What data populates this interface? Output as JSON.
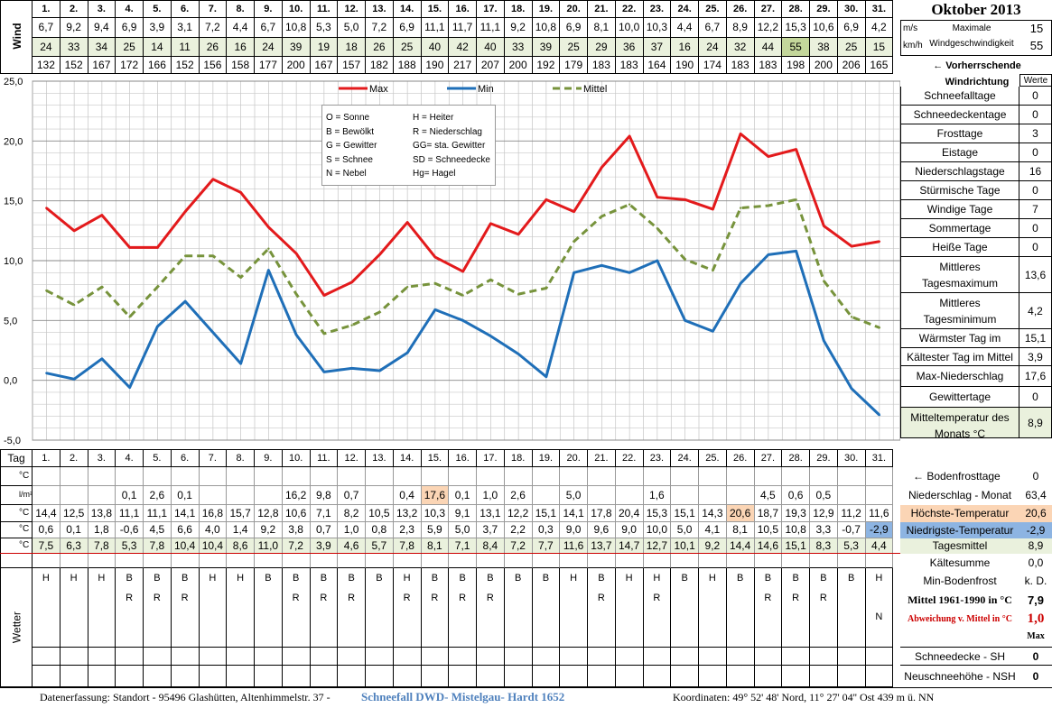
{
  "title": "Oktober 2013",
  "wind": {
    "label": "Wind",
    "unit_ms": "m/s",
    "unit_kmh": "km/h",
    "max_label_1": "Maximale",
    "max_label_2": "Windgeschwindigkeit",
    "max_ms": "15",
    "max_kmh": "55",
    "dir_label": "← Vorherrschende Windrichtung",
    "ms": [
      "6,7",
      "9,2",
      "9,4",
      "6,9",
      "3,9",
      "3,1",
      "7,2",
      "4,4",
      "6,7",
      "10,8",
      "5,3",
      "5,0",
      "7,2",
      "6,9",
      "11,1",
      "11,7",
      "11,1",
      "9,2",
      "10,8",
      "6,9",
      "8,1",
      "10,0",
      "10,3",
      "4,4",
      "6,7",
      "8,9",
      "12,2",
      "15,3",
      "10,6",
      "6,9",
      "4,2"
    ],
    "kmh": [
      "24",
      "33",
      "34",
      "25",
      "14",
      "11",
      "26",
      "16",
      "24",
      "39",
      "19",
      "18",
      "26",
      "25",
      "40",
      "42",
      "40",
      "33",
      "39",
      "25",
      "29",
      "36",
      "37",
      "16",
      "24",
      "32",
      "44",
      "55",
      "38",
      "25",
      "15"
    ],
    "dir": [
      "132",
      "152",
      "167",
      "172",
      "166",
      "152",
      "156",
      "158",
      "177",
      "200",
      "167",
      "157",
      "182",
      "188",
      "190",
      "217",
      "207",
      "200",
      "192",
      "179",
      "183",
      "183",
      "164",
      "190",
      "174",
      "183",
      "183",
      "198",
      "200",
      "206",
      "165"
    ]
  },
  "days": [
    "1.",
    "2.",
    "3.",
    "4.",
    "5.",
    "6.",
    "7.",
    "8.",
    "9.",
    "10.",
    "11.",
    "12.",
    "13.",
    "14.",
    "15.",
    "16.",
    "17.",
    "18.",
    "19.",
    "20.",
    "21.",
    "22.",
    "23.",
    "24.",
    "25.",
    "26.",
    "27.",
    "28.",
    "29.",
    "30.",
    "31."
  ],
  "right_panel": {
    "werte_label": "Werte",
    "rows": [
      {
        "label": "Schneefalltage",
        "value": "0"
      },
      {
        "label": "Schneedeckentage",
        "value": "0"
      },
      {
        "label": "Frosttage",
        "value": "3"
      },
      {
        "label": "Eistage",
        "value": "0"
      },
      {
        "label": "Niederschlagstage",
        "value": "16"
      },
      {
        "label": "Stürmische Tage",
        "value": "0"
      },
      {
        "label": "Windige Tage",
        "value": "7"
      },
      {
        "label": "Sommertage",
        "value": "0"
      },
      {
        "label": "Heiße Tage",
        "value": "0"
      },
      {
        "label": "Mittleres Tagesmaximum",
        "value": "13,6"
      },
      {
        "label": "Mittleres Tagesminimum",
        "value": "4,2"
      },
      {
        "label": "Wärmster Tag im Mittel",
        "value": "15,1"
      },
      {
        "label": "Kältester Tag im Mittel",
        "value": "3,9"
      },
      {
        "label": "Max-Niederschlag",
        "value": "17,6"
      },
      {
        "label": "Gewittertage",
        "value": "0"
      },
      {
        "label": "Mitteltemperatur des Monats °C",
        "value": "8,9"
      }
    ]
  },
  "chart_data": {
    "type": "line",
    "x": [
      1,
      2,
      3,
      4,
      5,
      6,
      7,
      8,
      9,
      10,
      11,
      12,
      13,
      14,
      15,
      16,
      17,
      18,
      19,
      20,
      21,
      22,
      23,
      24,
      25,
      26,
      27,
      28,
      29,
      30,
      31
    ],
    "ylim": [
      -5,
      25
    ],
    "yticks": [
      "25,0",
      "20,0",
      "15,0",
      "10,0",
      "5,0",
      "0,0",
      "-5,0"
    ],
    "grid": true,
    "legend": "top",
    "series": [
      {
        "name": "Max",
        "color": "#e31a1c",
        "dash": false,
        "values": [
          14.4,
          12.5,
          13.8,
          11.1,
          11.1,
          14.1,
          16.8,
          15.7,
          12.8,
          10.6,
          7.1,
          8.2,
          10.5,
          13.2,
          10.3,
          9.1,
          13.1,
          12.2,
          15.1,
          14.1,
          17.8,
          20.4,
          15.3,
          15.1,
          14.3,
          20.6,
          18.7,
          19.3,
          12.9,
          11.2,
          11.6
        ]
      },
      {
        "name": "Min",
        "color": "#1f6fb8",
        "dash": false,
        "values": [
          0.6,
          0.1,
          1.8,
          -0.6,
          4.5,
          6.6,
          4.0,
          1.4,
          9.2,
          3.8,
          0.7,
          1.0,
          0.8,
          2.3,
          5.9,
          5.0,
          3.7,
          2.2,
          0.3,
          9.0,
          9.6,
          9.0,
          10.0,
          5.0,
          4.1,
          8.1,
          10.5,
          10.8,
          3.3,
          -0.7,
          -2.9
        ]
      },
      {
        "name": "Mittel",
        "color": "#77933c",
        "dash": true,
        "values": [
          7.5,
          6.3,
          7.8,
          5.3,
          7.8,
          10.4,
          10.4,
          8.6,
          11.0,
          7.2,
          3.9,
          4.6,
          5.7,
          7.8,
          8.1,
          7.1,
          8.4,
          7.2,
          7.7,
          11.6,
          13.7,
          14.7,
          12.7,
          10.1,
          9.2,
          14.4,
          14.6,
          15.1,
          8.3,
          5.3,
          4.4
        ]
      }
    ],
    "weather_legend": [
      [
        "O = Sonne",
        "H = Heiter"
      ],
      [
        "B = Bewölkt",
        "R = Niederschlag"
      ],
      [
        "G = Gewitter",
        "GG= sta. Gewitter"
      ],
      [
        "S = Schnee",
        "SD = Schneedecke"
      ],
      [
        "N = Nebel",
        "Hg= Hagel"
      ]
    ]
  },
  "table": {
    "tag_label": "Tag",
    "unit_c": "°C",
    "unit_precip": "l/m²",
    "bodenfrost_label": "← Bodenfrosttage",
    "bodenfrost_value": "0",
    "precip": [
      "",
      "",
      "",
      "0,1",
      "2,6",
      "0,1",
      "",
      "",
      "",
      "16,2",
      "9,8",
      "0,7",
      "",
      "0,4",
      "17,6",
      "0,1",
      "1,0",
      "2,6",
      "",
      "5,0",
      "",
      "",
      "1,6",
      "",
      "",
      "",
      "4,5",
      "0,6",
      "0,5",
      "",
      ""
    ],
    "precip_label": "Niederschlag - Monat",
    "precip_value": "63,4",
    "max_label": "Höchste-Temperatur",
    "max_value": "20,6",
    "min_label": "Niedrigste-Temperatur",
    "min_value": "-2,9",
    "mean_label": "Tagesmittel",
    "mean_value": "8,9",
    "kaelte_label": "Kältesumme",
    "kaelte_value": "0,0",
    "minboden_label": "Min-Bodenfrost",
    "minboden_value": "k. D.",
    "mittel_label": "Mittel 1961-1990 in °C",
    "mittel_value": "7,9",
    "abw_label": "Abweichung v. Mittel in °C",
    "abw_value": "1,0",
    "max_word": "Max",
    "wetter_label": "Wetter",
    "weather_row1": [
      "H",
      "H",
      "H",
      "B",
      "B",
      "B",
      "H",
      "H",
      "B",
      "B",
      "B",
      "B",
      "B",
      "H",
      "B",
      "B",
      "B",
      "B",
      "B",
      "H",
      "B",
      "H",
      "H",
      "B",
      "H",
      "B",
      "B",
      "B",
      "B",
      "B",
      "H"
    ],
    "weather_row2": [
      "",
      "",
      "",
      "R",
      "R",
      "R",
      "",
      "",
      "",
      "R",
      "R",
      "R",
      "",
      "R",
      "R",
      "R",
      "R",
      "",
      "",
      "",
      "R",
      "",
      "R",
      "",
      "",
      "",
      "R",
      "R",
      "R",
      "",
      ""
    ],
    "weather_row3": [
      "",
      "",
      "",
      "",
      "",
      "",
      "",
      "",
      "",
      "",
      "",
      "",
      "",
      "",
      "",
      "",
      "",
      "",
      "",
      "",
      "",
      "",
      "",
      "",
      "",
      "",
      "",
      "",
      "",
      "",
      "N"
    ],
    "schnee_label": "Schneedecke -  SH",
    "schnee_value": "0",
    "neu_label": "Neuschneehöhe - NSH",
    "neu_value": "0"
  },
  "footer": {
    "left": "Datenerfassung:  Standort -   95496  Glashütten, Altenhimmelstr. 37 -",
    "link": "Schneefall DWD- Mistelgau- Hardt 1652",
    "right": "Koordinaten:  49° 52' 48' Nord,    11° 27' 04'' Ost   439 m ü. NN"
  }
}
